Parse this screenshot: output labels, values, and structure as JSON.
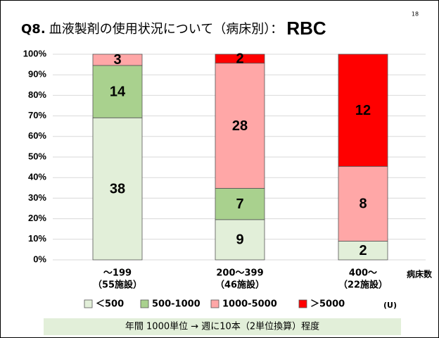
{
  "chart_data": {
    "type": "bar",
    "stack": "percent",
    "page_number": "18",
    "title": [
      "Q8.",
      "血液製剤の使用状況について（病床別）：",
      "RBC"
    ],
    "categories": [
      [
        "～199",
        "（55施設）"
      ],
      [
        "200～399",
        "（46施設）"
      ],
      [
        "400～",
        "（22施設）"
      ]
    ],
    "x_label": "病床数",
    "series": [
      {
        "name": "＜500",
        "color": "#e2efd9",
        "values": [
          38,
          9,
          2
        ]
      },
      {
        "name": "500-1000",
        "color": "#a9d18e",
        "values": [
          14,
          7,
          null
        ]
      },
      {
        "name": "1000-5000",
        "color": "#ffa7a7",
        "values": [
          3,
          28,
          8
        ]
      },
      {
        "name": "＞5000",
        "color": "#ff0000",
        "values": [
          null,
          2,
          12
        ]
      }
    ],
    "legend_unit": "(U)",
    "ylim": [
      0,
      100
    ],
    "yticks": [
      {
        "value": 0,
        "label": "0%"
      },
      {
        "value": 10,
        "label": "10%"
      },
      {
        "value": 20,
        "label": "20%"
      },
      {
        "value": 30,
        "label": "30%"
      },
      {
        "value": 40,
        "label": "40%"
      },
      {
        "value": 50,
        "label": "50%"
      },
      {
        "value": 60,
        "label": "60%"
      },
      {
        "value": 70,
        "label": "70%"
      },
      {
        "value": 80,
        "label": "80%"
      },
      {
        "value": 90,
        "label": "90%"
      },
      {
        "value": 100,
        "label": "100%"
      }
    ],
    "grid": true,
    "note": "年間 1000単位 → 週に10本（2単位換算）程度"
  }
}
